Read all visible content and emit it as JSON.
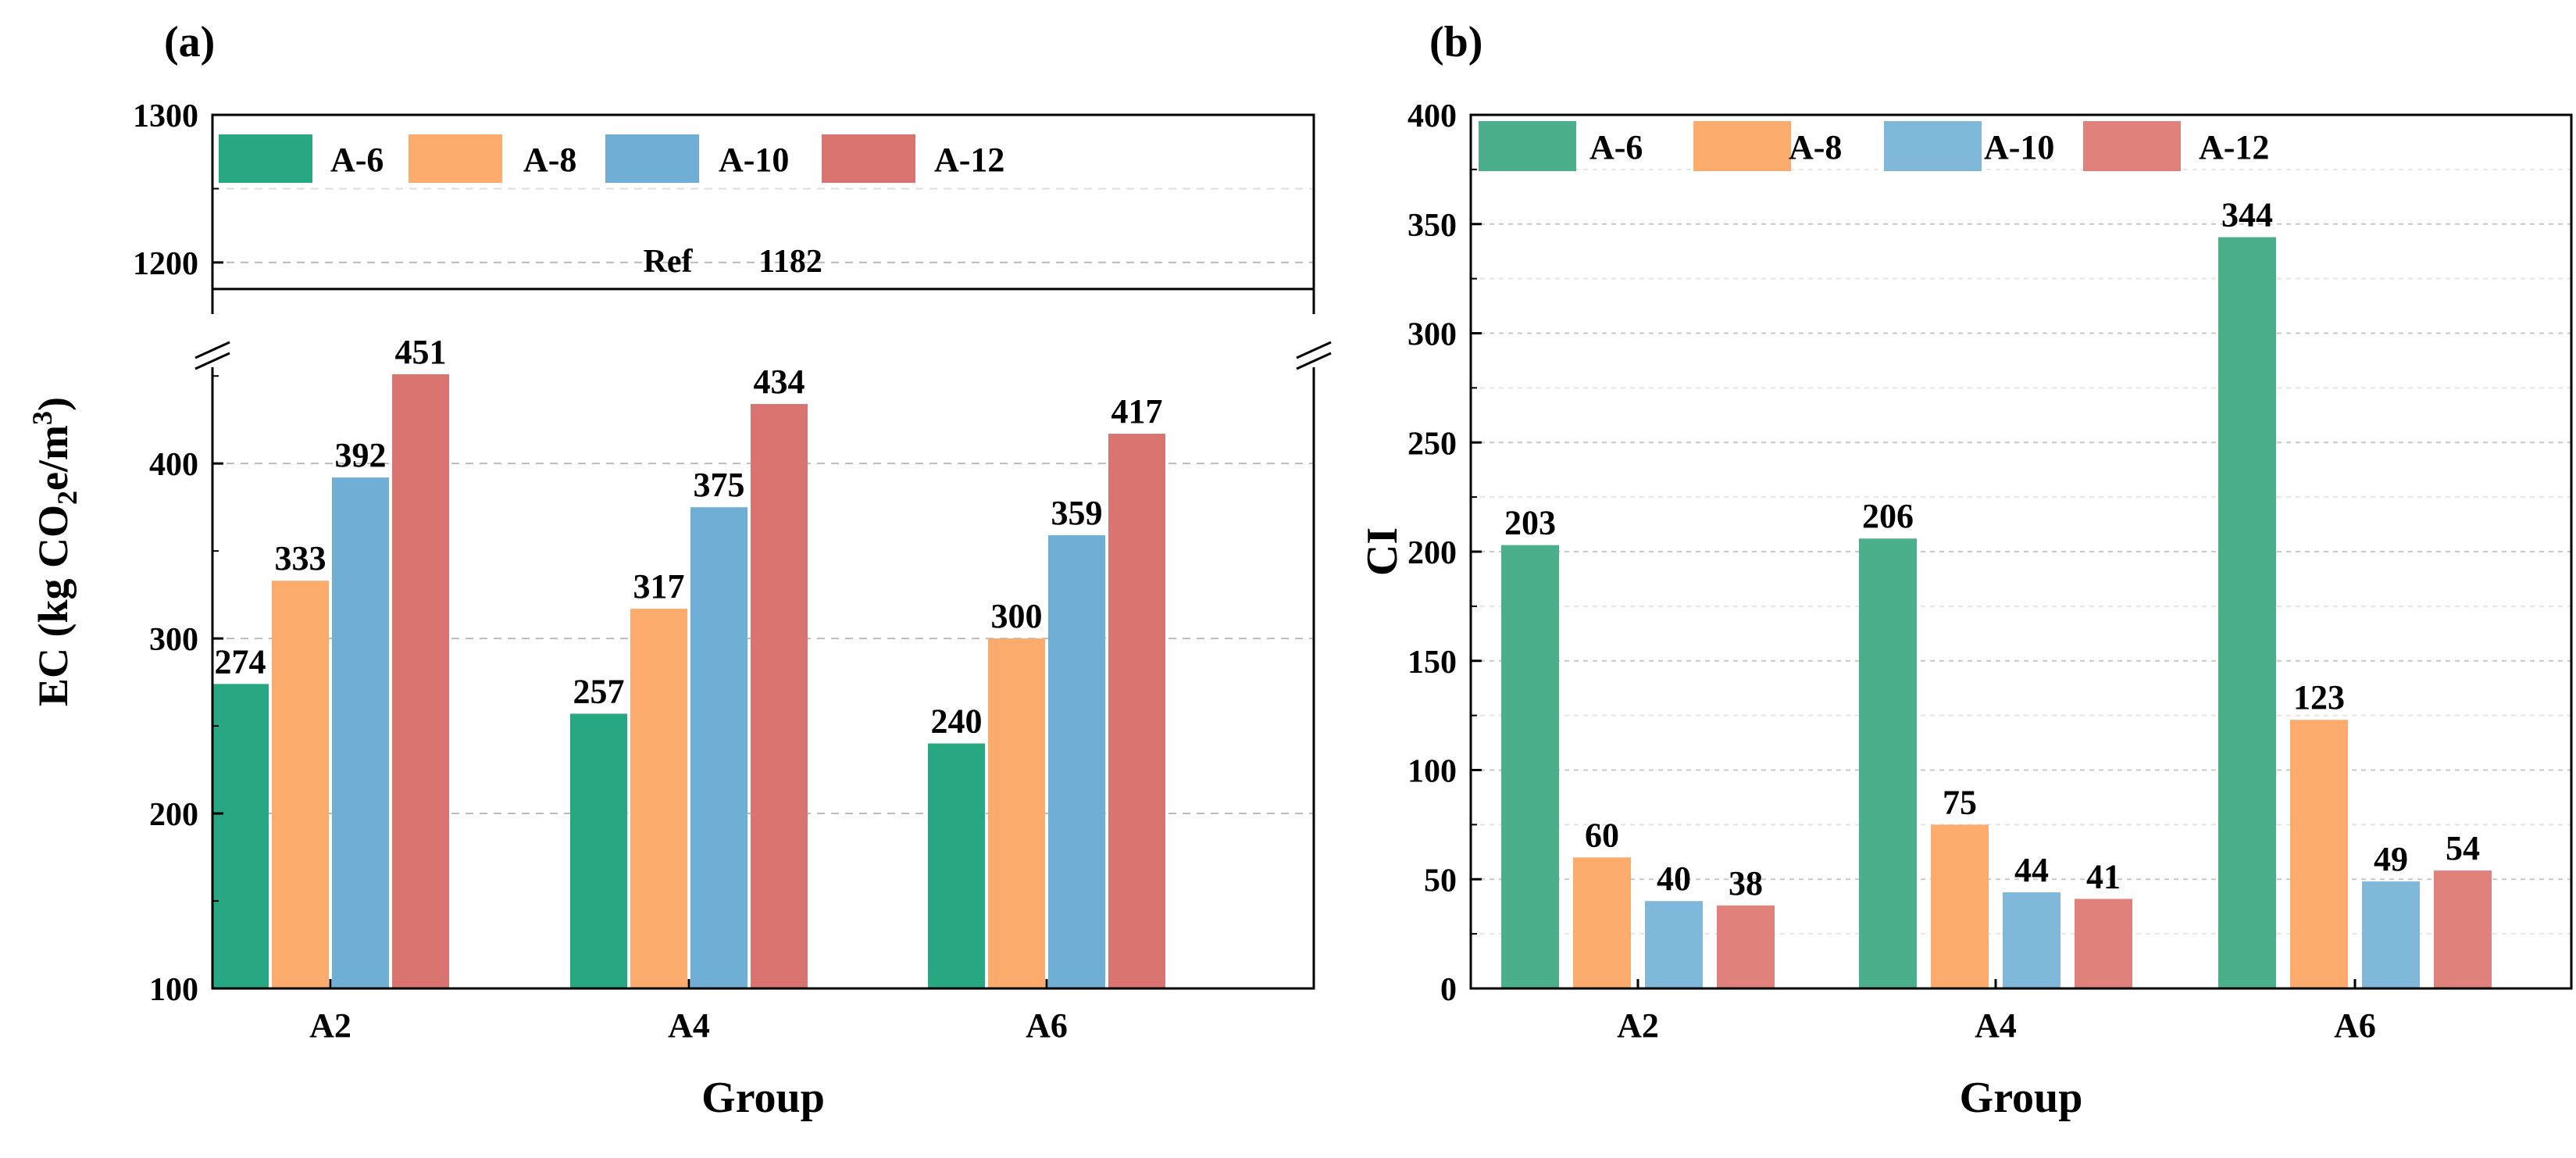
{
  "chart_data": [
    {
      "id": "a",
      "panel_label": "(a)",
      "type": "bar",
      "title": "",
      "xlabel": "Group",
      "ylabel": {
        "pre": "EC (kg CO",
        "sub": "2",
        "mid": "e/m",
        "sup": "3",
        "post": ")"
      },
      "categories": [
        "A2",
        "A4",
        "A6"
      ],
      "series": [
        {
          "name": "A-6",
          "color": "#28a882",
          "values": [
            274,
            257,
            240
          ]
        },
        {
          "name": "A-8",
          "color": "#fdab6c",
          "values": [
            333,
            317,
            300
          ]
        },
        {
          "name": "A-10",
          "color": "#6fafd5",
          "values": [
            392,
            375,
            359
          ]
        },
        {
          "name": "A-12",
          "color": "#da7470",
          "values": [
            451,
            434,
            417
          ]
        }
      ],
      "broken_axis": true,
      "ylim_lower": [
        100,
        455
      ],
      "yticks_lower": [
        100,
        200,
        300,
        400
      ],
      "ylim_upper": [
        1165,
        1300
      ],
      "yticks_upper": [
        1200,
        1300
      ],
      "reference": {
        "label": "Ref",
        "value": 1182,
        "text": "1182"
      },
      "legend_position": "top-left"
    },
    {
      "id": "b",
      "panel_label": "(b)",
      "type": "bar",
      "title": "",
      "xlabel": "Group",
      "ylabel": "CI",
      "categories": [
        "A2",
        "A4",
        "A6"
      ],
      "series": [
        {
          "name": "A-6",
          "color": "#4caf8c",
          "values": [
            203,
            206,
            344
          ]
        },
        {
          "name": "A-8",
          "color": "#fdab6c",
          "values": [
            60,
            75,
            123
          ]
        },
        {
          "name": "A-10",
          "color": "#7fb8d8",
          "values": [
            40,
            44,
            49
          ]
        },
        {
          "name": "A-12",
          "color": "#e0827b",
          "values": [
            38,
            41,
            54
          ]
        }
      ],
      "ylim": [
        0,
        400
      ],
      "yticks": [
        0,
        50,
        100,
        150,
        200,
        250,
        300,
        350,
        400
      ],
      "legend_position": "top"
    }
  ]
}
